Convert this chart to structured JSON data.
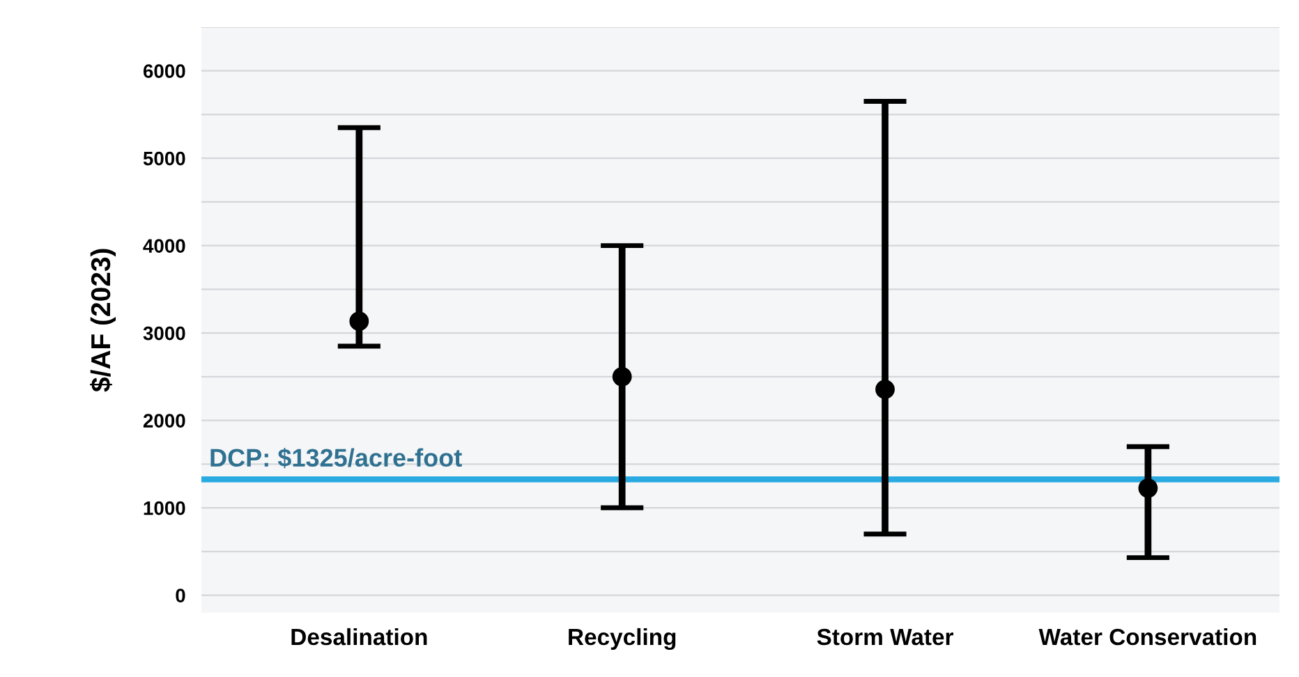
{
  "chart_data": {
    "type": "scatter",
    "ylabel": "$/AF (2023)",
    "categories": [
      "Desalination",
      "Recycling",
      "Storm Water",
      "Water Conservation"
    ],
    "series": [
      {
        "color": "#000000",
        "values": [
          3135,
          2500,
          2355,
          1225
        ],
        "errors": [
          [
            2850,
            5350
          ],
          [
            1000,
            4000
          ],
          [
            700,
            5650
          ],
          [
            430,
            1700
          ]
        ]
      }
    ],
    "ylim": [
      -200,
      6500
    ],
    "yticks": [
      0,
      {
        "value": 500,
        "label": null
      },
      1000,
      {
        "value": 1500,
        "label": null
      },
      2000,
      {
        "value": 2500,
        "label": null
      },
      3000,
      {
        "value": 3500,
        "label": null
      },
      4000,
      {
        "value": 4500,
        "label": null
      },
      5000,
      {
        "value": 5500,
        "label": null
      },
      6000,
      {
        "value": 6500,
        "label": null
      }
    ],
    "grid": "y",
    "marker": "circle",
    "ref_lines": [
      {
        "axis": "y",
        "value": 1325,
        "label": "DCP: $1325/acre-foot",
        "color": "#29aae1"
      }
    ]
  }
}
